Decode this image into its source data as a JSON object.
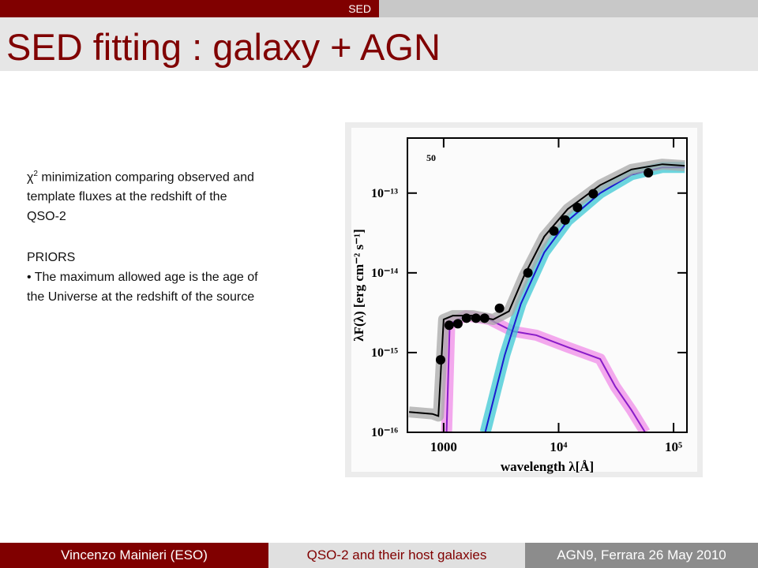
{
  "header": {
    "section": "SED",
    "title": "SED fitting : galaxy + AGN"
  },
  "body": {
    "intro_symbol": "χ",
    "intro_superscript": "2",
    "intro_lines": [
      "minimization comparing observed and",
      "template fluxes at the redshift of the",
      "QSO-2"
    ],
    "priors_heading": "PRIORS",
    "prior_lines": [
      "• The maximum allowed age is the age of",
      "the Universe at the redshift of the source"
    ]
  },
  "chart_data": {
    "type": "scatter",
    "log_x": true,
    "log_y": true,
    "annotation": "50",
    "xlabel": "wavelength λ[Å]",
    "ylabel": "λF(λ) [erg cm⁻² s⁻¹]",
    "xlim": [
      484,
      130700
    ],
    "ylim": [
      1e-16,
      4.9e-13
    ],
    "xticks": [
      1000,
      {
        "value": 10000,
        "label": "10⁴"
      },
      {
        "value": 100000,
        "label": "10⁵"
      }
    ],
    "yticks": [
      {
        "value": 1e-16,
        "label": "10⁻¹⁶"
      },
      {
        "value": 1e-15,
        "label": "10⁻¹⁵"
      },
      {
        "value": 1e-14,
        "label": "10⁻¹⁴"
      },
      {
        "value": 1e-13,
        "label": "10⁻¹³"
      }
    ],
    "series": [
      {
        "style": "points",
        "color": "#000000",
        "x": [
          940,
          1117,
          1330,
          1580,
          1910,
          2270,
          3060,
          5410,
          9100,
          11400,
          14600,
          20000,
          60400
        ],
        "values": [
          8.1e-16,
          2.2e-15,
          2.3e-15,
          2.7e-15,
          2.7e-15,
          2.7e-15,
          3.6e-15,
          1e-14,
          3.35e-14,
          4.6e-14,
          6.6e-14,
          9.8e-14,
          1.8e-13
        ]
      },
      {
        "style": "line",
        "color": "#8a1cc8",
        "band_color": "#f08ce8",
        "x": [
          1060,
          1130,
          1560,
          2500,
          4000,
          6400,
          12000,
          23000,
          31100,
          43000,
          56600
        ],
        "values": [
          1e-16,
          2.3e-15,
          2.9e-15,
          2.6e-15,
          1.85e-15,
          1.65e-15,
          1.17e-15,
          8.3e-16,
          3.75e-16,
          1.9e-16,
          1e-16
        ]
      },
      {
        "style": "line",
        "color": "#1a1ad0",
        "band_color": "#3cc8d4",
        "x": [
          2300,
          3400,
          4700,
          7500,
          12000,
          23000,
          43000,
          80000,
          125000
        ],
        "values": [
          1e-16,
          9.3e-16,
          4.1e-15,
          1.8e-14,
          4.5e-14,
          1e-13,
          1.7e-13,
          2.1e-13,
          2.1e-13
        ]
      },
      {
        "style": "line",
        "color": "#000000",
        "band_color": "#a8a8a8",
        "x": [
          500,
          800,
          900,
          1000,
          1200,
          1800,
          2700,
          3700,
          5000,
          7500,
          12000,
          23000,
          43000,
          80000,
          125000
        ],
        "values": [
          1.8e-16,
          1.7e-16,
          1.6e-16,
          2.6e-15,
          2.9e-15,
          2.9e-15,
          2.6e-15,
          3.3e-15,
          9.1e-15,
          2.85e-14,
          6.3e-14,
          1.26e-13,
          1.98e-13,
          2.3e-13,
          2.2e-13
        ]
      }
    ]
  },
  "footer": {
    "author": "Vincenzo Mainieri (ESO)",
    "talk": "QSO-2 and their host galaxies",
    "event": "AGN9, Ferrara 26 May 2010"
  }
}
